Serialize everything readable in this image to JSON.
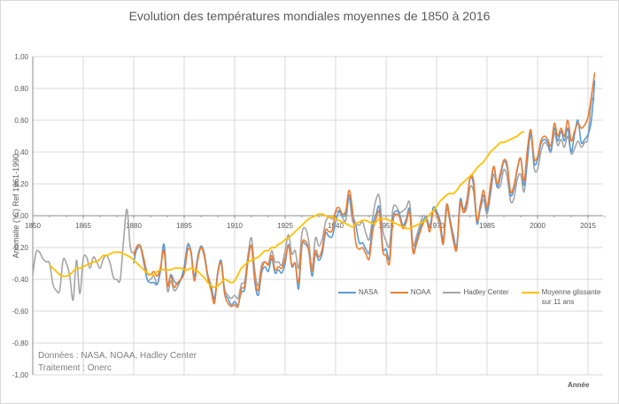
{
  "chart_data": {
    "type": "line",
    "title": "Evolution des températures mondiales moyennes de 1850 à 2016",
    "xlabel": "Année",
    "ylabel": "Anomalie (°C) Ref 1961-1990",
    "xlim": [
      1850,
      2020
    ],
    "ylim": [
      -1.0,
      1.0
    ],
    "x_ticks": [
      "1850",
      "1865",
      "1880",
      "1895",
      "1910",
      "1925",
      "1940",
      "1955",
      "1970",
      "1985",
      "2000",
      "2015"
    ],
    "y_ticks": [
      "1,00",
      "0,80",
      "0,60",
      "0,40",
      "0,20",
      "0,00",
      "-0,20",
      "-0,40",
      "-0,60",
      "-0,80",
      "-1,00"
    ],
    "grid": true,
    "legend_position": "bottom-right",
    "annotation": [
      "Données : NASA, NOAA, Hadley Center",
      "Traitement : Onerc"
    ],
    "colors": {
      "NASA": "#5b9bd5",
      "NOAA": "#ed7d31",
      "Hadley Center": "#a5a5a5",
      "Moyenne glissante": "#ffc000"
    },
    "series": [
      {
        "name": "NASA",
        "x_start": 1880,
        "values": [
          -0.3,
          -0.2,
          -0.19,
          -0.28,
          -0.4,
          -0.42,
          -0.42,
          -0.43,
          -0.34,
          -0.18,
          -0.43,
          -0.37,
          -0.41,
          -0.43,
          -0.4,
          -0.32,
          -0.19,
          -0.22,
          -0.38,
          -0.26,
          -0.19,
          -0.24,
          -0.37,
          -0.44,
          -0.52,
          -0.35,
          -0.29,
          -0.48,
          -0.52,
          -0.56,
          -0.54,
          -0.56,
          -0.48,
          -0.46,
          -0.28,
          -0.19,
          -0.42,
          -0.5,
          -0.36,
          -0.32,
          -0.35,
          -0.27,
          -0.36,
          -0.34,
          -0.36,
          -0.3,
          -0.18,
          -0.32,
          -0.3,
          -0.46,
          -0.19,
          -0.18,
          -0.22,
          -0.38,
          -0.24,
          -0.28,
          -0.24,
          -0.11,
          -0.13,
          -0.13,
          -0.04,
          0.03,
          0.0,
          0.01,
          0.13,
          0.01,
          -0.06,
          -0.17,
          -0.17,
          -0.21,
          -0.23,
          -0.06,
          0.01,
          0.05,
          -0.2,
          -0.21,
          -0.27,
          -0.02,
          0.03,
          0.01,
          -0.06,
          -0.02,
          0.04,
          -0.22,
          -0.16,
          -0.09,
          -0.03,
          -0.01,
          -0.07,
          0.05,
          0.03,
          -0.03,
          -0.15,
          0.07,
          -0.02,
          -0.13,
          -0.19,
          0.1,
          0.04,
          0.1,
          0.24,
          0.19,
          -0.05,
          0.05,
          0.13,
          0.03,
          0.16,
          0.31,
          0.18,
          0.25,
          0.34,
          0.3,
          0.13,
          0.17,
          0.29,
          0.36,
          0.19,
          0.37,
          0.51,
          0.33,
          0.35,
          0.45,
          0.48,
          0.46,
          0.41,
          0.55,
          0.47,
          0.53,
          0.47,
          0.55,
          0.4,
          0.51,
          0.6,
          0.46,
          0.48,
          0.51,
          0.6,
          0.85
        ]
      },
      {
        "name": "NOAA",
        "x_start": 1880,
        "values": [
          -0.25,
          -0.19,
          -0.19,
          -0.27,
          -0.36,
          -0.37,
          -0.35,
          -0.38,
          -0.32,
          -0.22,
          -0.44,
          -0.38,
          -0.45,
          -0.42,
          -0.4,
          -0.36,
          -0.22,
          -0.23,
          -0.41,
          -0.28,
          -0.2,
          -0.25,
          -0.38,
          -0.47,
          -0.55,
          -0.36,
          -0.3,
          -0.49,
          -0.55,
          -0.57,
          -0.56,
          -0.57,
          -0.46,
          -0.44,
          -0.27,
          -0.19,
          -0.4,
          -0.47,
          -0.34,
          -0.29,
          -0.31,
          -0.25,
          -0.34,
          -0.32,
          -0.33,
          -0.27,
          -0.19,
          -0.31,
          -0.3,
          -0.42,
          -0.18,
          -0.16,
          -0.21,
          -0.35,
          -0.22,
          -0.26,
          -0.21,
          -0.09,
          -0.1,
          -0.09,
          0.03,
          0.05,
          0.01,
          0.03,
          0.16,
          0.04,
          -0.17,
          -0.21,
          -0.2,
          -0.24,
          -0.27,
          -0.1,
          -0.02,
          0.02,
          -0.22,
          -0.25,
          -0.3,
          -0.04,
          0.01,
          -0.01,
          -0.08,
          -0.04,
          0.02,
          -0.23,
          -0.18,
          -0.11,
          -0.05,
          -0.03,
          -0.1,
          0.03,
          0.01,
          -0.05,
          -0.17,
          0.07,
          -0.04,
          -0.16,
          -0.21,
          0.08,
          0.02,
          0.09,
          0.24,
          0.22,
          -0.03,
          0.07,
          0.16,
          0.05,
          0.19,
          0.31,
          0.2,
          0.27,
          0.35,
          0.32,
          0.15,
          0.19,
          0.3,
          0.36,
          0.22,
          0.42,
          0.54,
          0.36,
          0.37,
          0.47,
          0.5,
          0.48,
          0.44,
          0.58,
          0.5,
          0.55,
          0.5,
          0.6,
          0.47,
          0.53,
          0.58,
          0.55,
          0.57,
          0.62,
          0.75,
          0.9
        ]
      },
      {
        "name": "Hadley Center",
        "x_start": 1850,
        "values": [
          -0.37,
          -0.23,
          -0.23,
          -0.27,
          -0.29,
          -0.3,
          -0.43,
          -0.47,
          -0.47,
          -0.28,
          -0.3,
          -0.38,
          -0.53,
          -0.28,
          -0.49,
          -0.27,
          -0.26,
          -0.33,
          -0.26,
          -0.29,
          -0.33,
          -0.27,
          -0.25,
          -0.3,
          -0.39,
          -0.4,
          -0.4,
          -0.15,
          0.04,
          -0.2,
          -0.23,
          -0.21,
          -0.2,
          -0.3,
          -0.4,
          -0.4,
          -0.38,
          -0.43,
          -0.33,
          -0.18,
          -0.47,
          -0.41,
          -0.47,
          -0.45,
          -0.4,
          -0.35,
          -0.18,
          -0.23,
          -0.4,
          -0.27,
          -0.2,
          -0.26,
          -0.39,
          -0.46,
          -0.53,
          -0.36,
          -0.28,
          -0.46,
          -0.5,
          -0.52,
          -0.5,
          -0.52,
          -0.43,
          -0.41,
          -0.24,
          -0.14,
          -0.35,
          -0.44,
          -0.31,
          -0.29,
          -0.3,
          -0.22,
          -0.29,
          -0.29,
          -0.31,
          -0.22,
          -0.12,
          -0.24,
          -0.22,
          -0.33,
          -0.11,
          -0.08,
          -0.16,
          -0.33,
          -0.14,
          -0.19,
          -0.15,
          -0.04,
          -0.01,
          -0.02,
          0.02,
          0.03,
          -0.01,
          -0.03,
          0.11,
          -0.03,
          -0.05,
          -0.06,
          -0.04,
          -0.11,
          -0.15,
          -0.01,
          0.1,
          0.12,
          -0.09,
          -0.16,
          -0.19,
          0.04,
          0.06,
          0.02,
          0.03,
          0.05,
          0.08,
          -0.18,
          -0.13,
          -0.06,
          0.0,
          -0.02,
          -0.07,
          0.03,
          0.01,
          -0.07,
          -0.18,
          0.04,
          -0.04,
          -0.12,
          -0.2,
          0.06,
          0.02,
          0.05,
          0.18,
          0.15,
          -0.04,
          0.04,
          0.1,
          0.01,
          0.13,
          0.26,
          0.18,
          0.19,
          0.29,
          0.24,
          0.09,
          0.11,
          0.23,
          0.26,
          0.15,
          0.34,
          0.53,
          0.3,
          0.29,
          0.4,
          0.46,
          0.44,
          0.4,
          0.52,
          0.44,
          0.48,
          0.43,
          0.5,
          0.39,
          0.42,
          0.47,
          0.43,
          0.46,
          0.49,
          0.72,
          0.73
        ]
      },
      {
        "name": "Moyenne glissante sur 11 ans",
        "x_start": 1855,
        "values": [
          -0.31,
          -0.33,
          -0.35,
          -0.37,
          -0.38,
          -0.38,
          -0.37,
          -0.35,
          -0.33,
          -0.33,
          -0.32,
          -0.31,
          -0.3,
          -0.29,
          -0.29,
          -0.27,
          -0.25,
          -0.25,
          -0.24,
          -0.23,
          -0.23,
          -0.23,
          -0.24,
          -0.25,
          -0.26,
          -0.28,
          -0.3,
          -0.32,
          -0.34,
          -0.36,
          -0.37,
          -0.37,
          -0.35,
          -0.34,
          -0.34,
          -0.34,
          -0.34,
          -0.33,
          -0.33,
          -0.33,
          -0.34,
          -0.34,
          -0.33,
          -0.34,
          -0.35,
          -0.37,
          -0.39,
          -0.42,
          -0.44,
          -0.45,
          -0.44,
          -0.42,
          -0.4,
          -0.41,
          -0.42,
          -0.41,
          -0.37,
          -0.33,
          -0.31,
          -0.29,
          -0.28,
          -0.27,
          -0.26,
          -0.24,
          -0.22,
          -0.22,
          -0.2,
          -0.2,
          -0.18,
          -0.17,
          -0.15,
          -0.14,
          -0.12,
          -0.1,
          -0.08,
          -0.06,
          -0.04,
          -0.02,
          -0.01,
          0.0,
          0.01,
          0.01,
          0.0,
          -0.01,
          -0.01,
          -0.02,
          -0.03,
          -0.04,
          -0.05,
          -0.06,
          -0.07,
          -0.05,
          -0.04,
          -0.03,
          -0.03,
          -0.04,
          -0.05,
          -0.04,
          -0.02,
          -0.02,
          -0.02,
          -0.03,
          -0.04,
          -0.05,
          -0.06,
          -0.07,
          -0.08,
          -0.08,
          -0.07,
          -0.06,
          -0.05,
          -0.04,
          -0.02,
          0.01,
          0.03,
          0.06,
          0.09,
          0.11,
          0.13,
          0.14,
          0.14,
          0.16,
          0.19,
          0.21,
          0.23,
          0.25,
          0.27,
          0.3,
          0.32,
          0.34,
          0.37,
          0.4,
          0.42,
          0.44,
          0.46,
          0.46,
          0.47,
          0.48,
          0.49,
          0.5,
          0.52,
          0.53
        ]
      }
    ]
  },
  "legend": [
    {
      "label": "NASA",
      "color": "#5b9bd5"
    },
    {
      "label": "NOAA",
      "color": "#ed7d31"
    },
    {
      "label": "Hadley Center",
      "color": "#a5a5a5"
    },
    {
      "label": "Moyenne glissante sur 11 ans",
      "color": "#ffc000"
    }
  ],
  "notes": {
    "line1": "Données : NASA, NOAA, Hadley Center",
    "line2": "Traitement : Onerc"
  }
}
